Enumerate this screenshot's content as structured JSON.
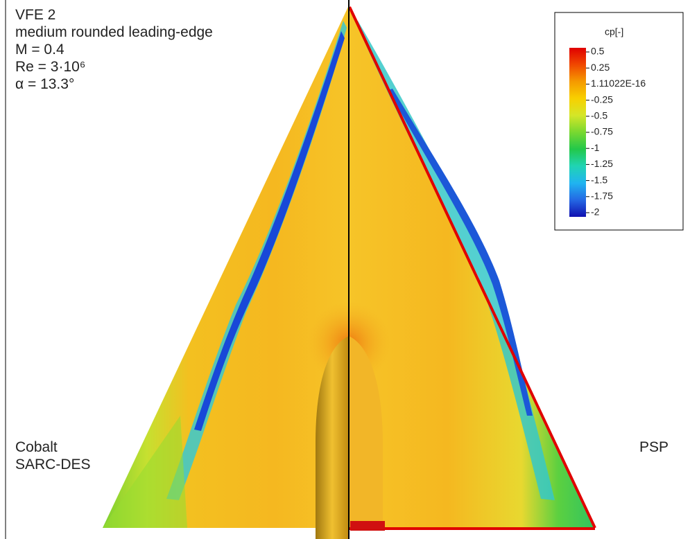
{
  "header": {
    "lines": [
      "VFE 2",
      "medium rounded leading-edge",
      "M = 0.4",
      "Re = 3·10⁶",
      "α = 13.3°"
    ]
  },
  "left_label": [
    "Cobalt",
    "SARC-DES"
  ],
  "right_label": "PSP",
  "legend": {
    "title": "cp[-]",
    "levels": [
      "0.5",
      "0.25",
      "1.11022E-16",
      "-0.25",
      "-0.5",
      "-0.75",
      "-1",
      "-1.25",
      "-1.5",
      "-1.75",
      "-2"
    ],
    "colors": [
      "#e00000",
      "#f04800",
      "#f59a00",
      "#f8d000",
      "#d4e628",
      "#78d830",
      "#22c84a",
      "#20d4b4",
      "#20b4f0",
      "#2468e4",
      "#1010b0"
    ]
  }
}
